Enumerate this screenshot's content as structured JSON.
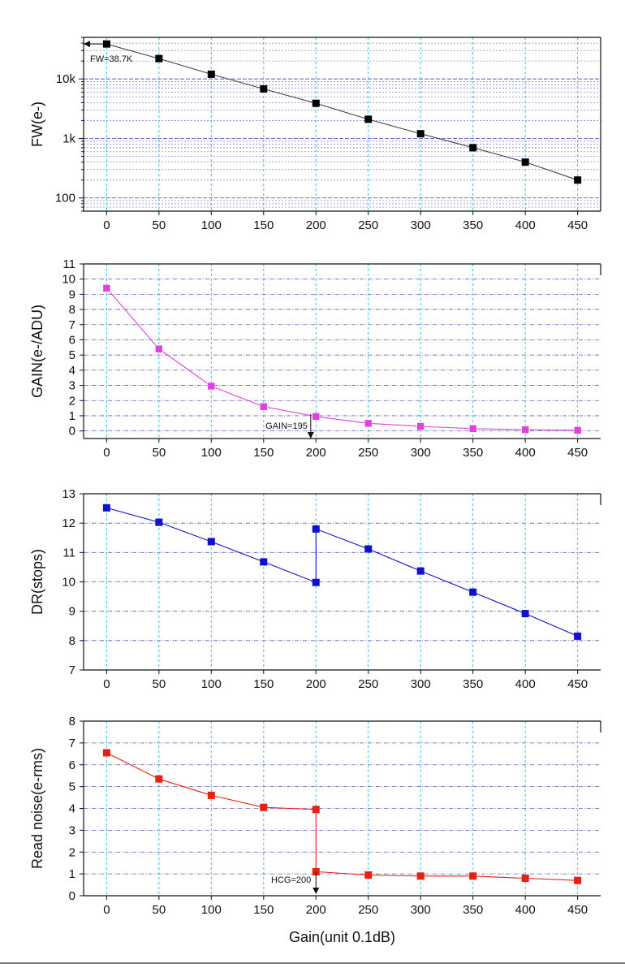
{
  "chart_data": [
    {
      "type": "line",
      "ylabel": "FW(e-)",
      "yscale": "log",
      "ylim": [
        60,
        50000
      ],
      "xlim": [
        -22,
        472
      ],
      "ytick_values": [
        100,
        1000,
        10000
      ],
      "ytick_labels": [
        "100",
        "1k",
        "10k"
      ],
      "x": [
        0,
        50,
        100,
        150,
        200,
        250,
        300,
        350,
        400,
        450
      ],
      "xtick_labels": [
        "0",
        "50",
        "100",
        "150",
        "200",
        "250",
        "300",
        "350",
        "400",
        "450"
      ],
      "series": [
        {
          "values": [
            38700,
            22000,
            12000,
            6800,
            3900,
            2100,
            1200,
            700,
            400,
            200
          ]
        }
      ],
      "color": "#000000",
      "annotations": [
        {
          "text": "FW=38.7K",
          "x": 0,
          "y": 38700
        }
      ],
      "grid": true
    },
    {
      "type": "line",
      "ylabel": "GAIN(e-/ADU)",
      "ylim": [
        -0.5,
        11
      ],
      "xlim": [
        -22,
        472
      ],
      "ytick_values": [
        0,
        1,
        2,
        3,
        4,
        5,
        6,
        7,
        8,
        9,
        10,
        11
      ],
      "ytick_labels": [
        "0",
        "1",
        "2",
        "3",
        "4",
        "5",
        "6",
        "7",
        "8",
        "9",
        "10",
        "11"
      ],
      "x": [
        0,
        50,
        100,
        150,
        200,
        250,
        300,
        350,
        400,
        450
      ],
      "xtick_labels": [
        "0",
        "50",
        "100",
        "150",
        "200",
        "250",
        "300",
        "350",
        "400",
        "450"
      ],
      "series": [
        {
          "values": [
            9.4,
            5.4,
            2.95,
            1.6,
            0.95,
            0.5,
            0.3,
            0.15,
            0.08,
            0.04
          ]
        }
      ],
      "color": "#e040e0",
      "annotations": [
        {
          "text": "GAIN=195",
          "x": 195,
          "y": 1
        }
      ],
      "grid": true
    },
    {
      "type": "line",
      "ylabel": "DR(stops)",
      "ylim": [
        7,
        13
      ],
      "xlim": [
        -22,
        472
      ],
      "ytick_values": [
        7,
        8,
        9,
        10,
        11,
        12,
        13
      ],
      "ytick_labels": [
        "7",
        "8",
        "9",
        "10",
        "11",
        "12",
        "13"
      ],
      "x": [
        0,
        50,
        100,
        150,
        200,
        200,
        250,
        300,
        350,
        400,
        450
      ],
      "xtick_labels": [
        "0",
        "50",
        "100",
        "150",
        "200",
        "250",
        "300",
        "350",
        "400",
        "450"
      ],
      "series": [
        {
          "values": [
            12.52,
            12.03,
            11.37,
            10.68,
            9.98,
            11.8,
            11.12,
            10.37,
            9.65,
            8.92,
            8.15
          ]
        }
      ],
      "color": "#1010d0",
      "grid": true
    },
    {
      "type": "line",
      "ylabel": "Read noise(e-rms)",
      "xlabel": "Gain(unit 0.1dB)",
      "ylim": [
        0,
        8
      ],
      "xlim": [
        -22,
        472
      ],
      "ytick_values": [
        0,
        1,
        2,
        3,
        4,
        5,
        6,
        7,
        8
      ],
      "ytick_labels": [
        "0",
        "1",
        "2",
        "3",
        "4",
        "5",
        "6",
        "7",
        "8"
      ],
      "x": [
        0,
        50,
        100,
        150,
        200,
        200,
        250,
        300,
        350,
        400,
        450
      ],
      "xtick_labels": [
        "0",
        "50",
        "100",
        "150",
        "200",
        "250",
        "300",
        "350",
        "400",
        "450"
      ],
      "series": [
        {
          "values": [
            6.55,
            5.35,
            4.6,
            4.05,
            3.95,
            1.1,
            0.95,
            0.9,
            0.9,
            0.8,
            0.7
          ]
        }
      ],
      "color": "#e82010",
      "annotations": [
        {
          "text": "HCG=200",
          "x": 200,
          "y": 1.1
        }
      ],
      "grid": true
    }
  ]
}
